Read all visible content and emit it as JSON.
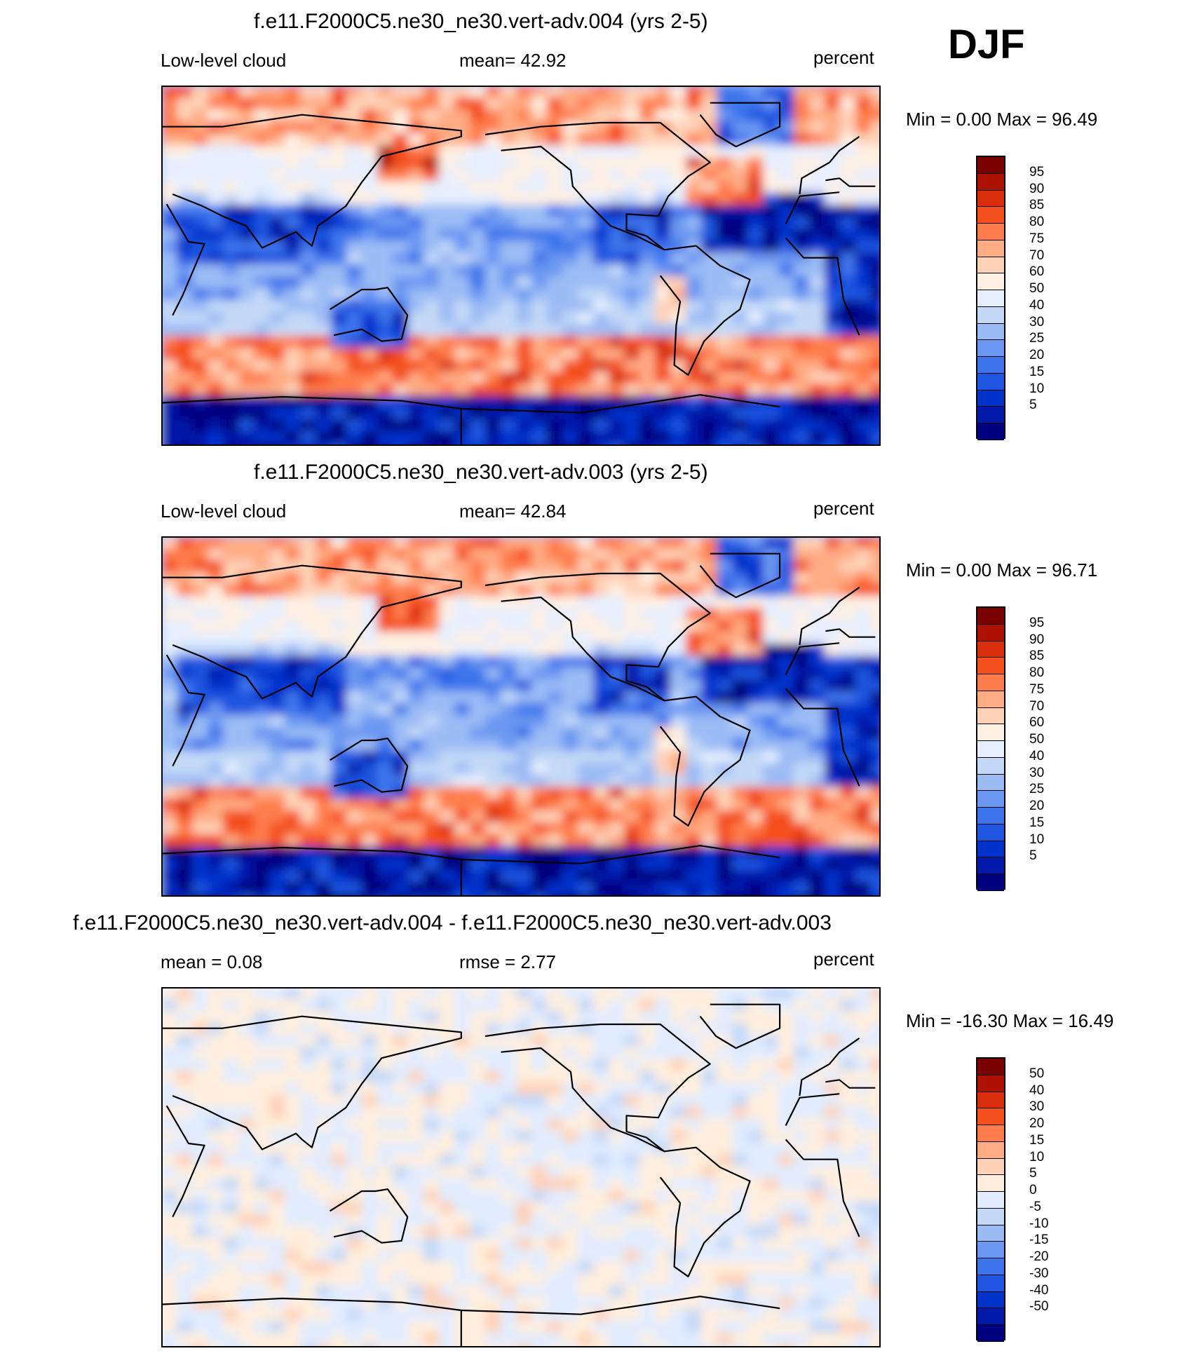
{
  "season": "DJF",
  "palettes": {
    "abs": [
      "#00007f",
      "#0019a8",
      "#0033cc",
      "#1f55e0",
      "#3d74ec",
      "#6a97f2",
      "#9bbcf5",
      "#c4d9f8",
      "#e6efff",
      "#fff0e3",
      "#ffd2b8",
      "#ffab84",
      "#ff7d4c",
      "#f4501e",
      "#d92e0b",
      "#ad1200",
      "#7a0000"
    ],
    "diff": [
      "#00007f",
      "#0019a8",
      "#0033cc",
      "#1f55e0",
      "#3d74ec",
      "#6a97f2",
      "#9bbcf5",
      "#c4d9f8",
      "#e1ecff",
      "#ffeedd",
      "#ffd2b8",
      "#ffab84",
      "#ff7d4c",
      "#f4501e",
      "#d92e0b",
      "#ad1200",
      "#7a0000"
    ]
  },
  "panels": [
    {
      "title": "f.e11.F2000C5.ne30_ne30.vert-adv.004 (yrs 2-5)",
      "left_label": "Low-level cloud",
      "center_label": "mean=  42.92",
      "right_label": "percent",
      "minmax": "Min =    0.00 Max =  96.49",
      "kind": "abs",
      "colorbar_labels": [
        "95",
        "90",
        "85",
        "80",
        "75",
        "70",
        "60",
        "50",
        "40",
        "30",
        "25",
        "20",
        "15",
        "10",
        "5"
      ]
    },
    {
      "title": "f.e11.F2000C5.ne30_ne30.vert-adv.003 (yrs 2-5)",
      "left_label": "Low-level cloud",
      "center_label": "mean=  42.84",
      "right_label": "percent",
      "minmax": "Min =    0.00 Max =  96.71",
      "kind": "abs",
      "colorbar_labels": [
        "95",
        "90",
        "85",
        "80",
        "75",
        "70",
        "60",
        "50",
        "40",
        "30",
        "25",
        "20",
        "15",
        "10",
        "5"
      ]
    },
    {
      "title": "f.e11.F2000C5.ne30_ne30.vert-adv.004 - f.e11.F2000C5.ne30_ne30.vert-adv.003",
      "left_label": "mean =    0.08",
      "center_label": "rmse =    2.77",
      "right_label": "percent",
      "minmax": "Min = -16.30 Max =  16.49",
      "kind": "diff",
      "colorbar_labels": [
        "50",
        "40",
        "30",
        "20",
        "15",
        "10",
        "5",
        "0",
        "-5",
        "-10",
        "-15",
        "-20",
        "-30",
        "-40",
        "-50"
      ]
    }
  ]
}
